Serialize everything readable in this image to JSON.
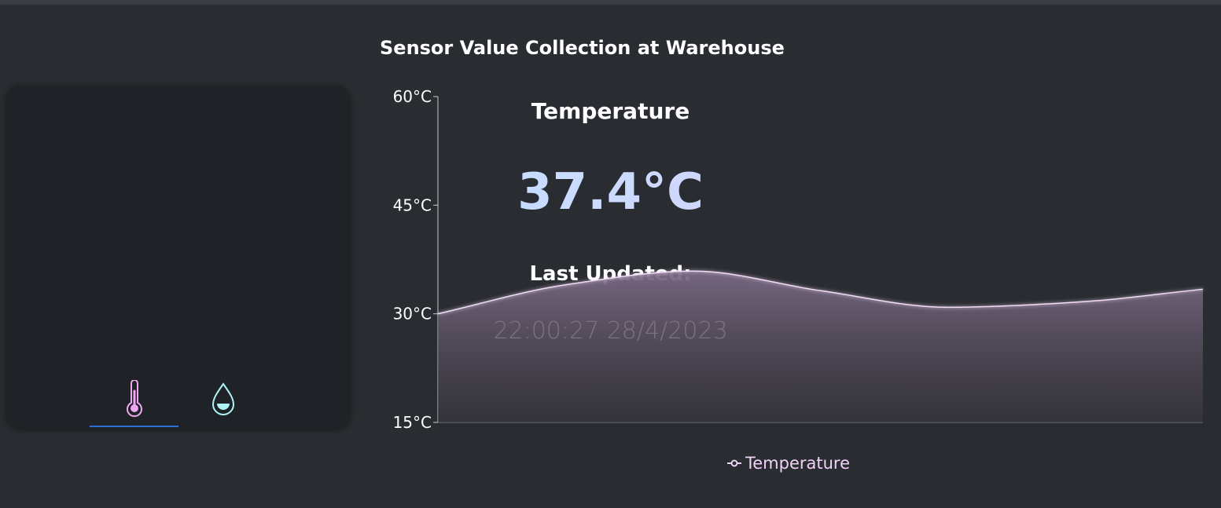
{
  "colors": {
    "background": "#292c31",
    "card": "#1f2226",
    "line": "#f3dcf6",
    "accent_tab": "#2f6fd6",
    "thermometer": "#f0a6f2",
    "droplet": "#aef3f6"
  },
  "card": {
    "title": "Temperature",
    "value": "37.4°C",
    "updated_label": "Last Updated:",
    "updated_value": "22:00:27 28/4/2023",
    "tabs": [
      {
        "icon": "thermometer-icon",
        "active": true
      },
      {
        "icon": "droplet-icon",
        "active": false
      }
    ]
  },
  "chart_data": {
    "type": "area",
    "title": "Sensor Value Collection at Warehouse",
    "ylim": [
      15,
      60
    ],
    "yticks": [
      "15°C",
      "30°C",
      "45°C",
      "60°C"
    ],
    "grid": false,
    "legend_position": "bottom-center",
    "series": [
      {
        "name": "Temperature",
        "values": [
          30,
          34,
          35.9,
          33.2,
          30.9,
          31.6,
          33.4
        ]
      }
    ]
  }
}
